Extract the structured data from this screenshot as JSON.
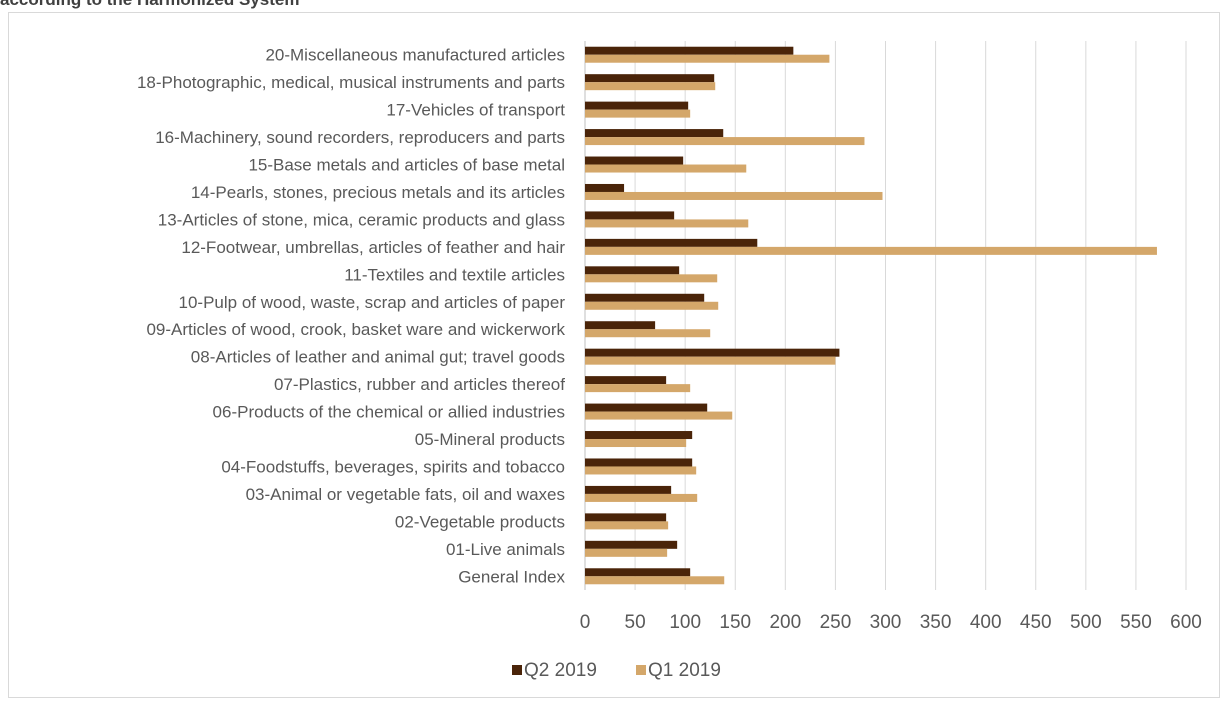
{
  "title": "according to the Harmonized System",
  "chart_data": {
    "type": "bar",
    "orientation": "horizontal",
    "title": "according to the Harmonized System",
    "xlabel": "",
    "ylabel": "",
    "xlim": [
      0,
      600
    ],
    "x_ticks": [
      0,
      50,
      100,
      150,
      200,
      250,
      300,
      350,
      400,
      450,
      500,
      550,
      600
    ],
    "grid": true,
    "legend_position": "bottom",
    "categories": [
      "20-Miscellaneous manufactured articles",
      "18-Photographic, medical, musical instruments and parts",
      "17-Vehicles of transport",
      "16-Machinery, sound recorders, reproducers and parts",
      "15-Base metals and articles of base metal",
      "14-Pearls, stones, precious metals and its articles",
      "13-Articles of stone, mica, ceramic products and glass",
      "12-Footwear, umbrellas, articles of feather and hair",
      "11-Textiles and textile articles",
      "10-Pulp of wood, waste, scrap and articles of paper",
      "09-Articles of wood, crook, basket ware and wickerwork",
      "08-Articles of leather and animal gut; travel goods",
      "07-Plastics, rubber and articles thereof",
      "06-Products of the chemical or allied industries",
      "05-Mineral products",
      "04-Foodstuffs, beverages, spirits and tobacco",
      "03-Animal or vegetable fats, oil and waxes",
      "02-Vegetable products",
      "01-Live animals",
      "General Index"
    ],
    "series": [
      {
        "name": "Q2 2019",
        "color": "#4a2409",
        "values": [
          208,
          129,
          103,
          138,
          98,
          39,
          89,
          172,
          94,
          119,
          70,
          254,
          81,
          122,
          107,
          107,
          86,
          81,
          92,
          105
        ]
      },
      {
        "name": "Q1 2019",
        "color": "#d4a76a",
        "values": [
          244,
          130,
          105,
          279,
          161,
          297,
          163,
          571,
          132,
          133,
          125,
          250,
          105,
          147,
          101,
          111,
          112,
          83,
          82,
          139
        ]
      }
    ]
  }
}
